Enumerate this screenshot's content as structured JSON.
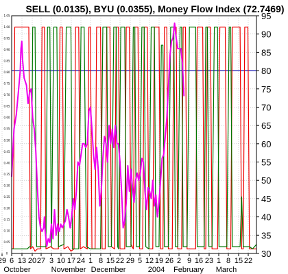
{
  "chart_data": {
    "type": "line",
    "title": "SELL (0.0135), BYU (0.0355), Money Flow Index (72.7469)",
    "left_axis": {
      "ylim": [
        0,
        1.05
      ],
      "ticks": [
        "0",
        "0.05",
        "0.10",
        "0.15",
        "0.20",
        "0.25",
        "0.30",
        "0.35",
        "0.40",
        "0.45",
        "0.50",
        "0.55",
        "0.60",
        "0.65",
        "0.70",
        "0.75",
        "0.80",
        "0.85",
        "0.90",
        "0.95",
        "1.00",
        "1.05"
      ]
    },
    "right_axis": {
      "ylim": [
        30,
        95
      ],
      "ticks": [
        "30",
        "35",
        "40",
        "45",
        "50",
        "55",
        "60",
        "65",
        "70",
        "75",
        "80",
        "85",
        "90",
        "95"
      ]
    },
    "x_ticks": [
      "29",
      "6",
      "13",
      "20",
      "27",
      "3",
      "10",
      "17",
      "24",
      "1",
      "8",
      "15",
      "22",
      "29",
      "5",
      "12",
      "19",
      "26",
      "2",
      "9",
      "16",
      "23",
      "1",
      "8",
      "15",
      "22"
    ],
    "months": [
      "October",
      "November",
      "December",
      "2004",
      "February",
      "March"
    ],
    "reference_line": {
      "axis": "right",
      "value": 80,
      "color": "#0000aa"
    },
    "grid": true,
    "series": [
      {
        "color": "#ee0000",
        "points": [
          [
            0,
            0.02
          ],
          [
            2,
            0.02
          ],
          [
            4,
            1.0
          ],
          [
            22,
            1.0
          ],
          [
            24,
            0.02
          ],
          [
            27,
            0.03
          ],
          [
            30,
            0.01
          ],
          [
            33,
            0.02
          ],
          [
            37,
            0.02
          ],
          [
            39,
            1.0
          ],
          [
            42,
            1.0
          ],
          [
            44,
            0.02
          ],
          [
            50,
            0.03
          ],
          [
            54,
            0.02
          ],
          [
            60,
            0.02
          ],
          [
            62,
            1.0
          ],
          [
            65,
            1.0
          ],
          [
            67,
            0.02
          ],
          [
            72,
            0.03
          ],
          [
            76,
            0.01
          ],
          [
            80,
            0.02
          ],
          [
            82,
            1.0
          ],
          [
            86,
            1.0
          ],
          [
            88,
            0.02
          ],
          [
            92,
            0.03
          ],
          [
            97,
            0.02
          ],
          [
            99,
            1.0
          ],
          [
            101,
            1.0
          ],
          [
            103,
            0.02
          ],
          [
            107,
            0.02
          ],
          [
            109,
            1.0
          ],
          [
            114,
            1.0
          ],
          [
            116,
            0.02
          ],
          [
            120,
            0.02
          ],
          [
            122,
            1.0
          ],
          [
            126,
            1.0
          ],
          [
            128,
            0.03
          ],
          [
            132,
            0.02
          ],
          [
            134,
            1.0
          ],
          [
            137,
            1.0
          ],
          [
            139,
            0.02
          ],
          [
            145,
            0.02
          ],
          [
            147,
            1.0
          ],
          [
            151,
            1.0
          ],
          [
            153,
            0.04
          ],
          [
            156,
            0.02
          ],
          [
            158,
            1.0
          ],
          [
            162,
            1.0
          ],
          [
            164,
            0.02
          ],
          [
            168,
            0.02
          ],
          [
            170,
            1.0
          ],
          [
            174,
            1.0
          ],
          [
            176,
            0.02
          ],
          [
            181,
            0.02
          ],
          [
            183,
            1.0
          ],
          [
            189,
            1.0
          ],
          [
            191,
            0.02
          ],
          [
            194,
            0.02
          ],
          [
            196,
            1.0
          ],
          [
            199,
            1.0
          ],
          [
            201,
            0.02
          ],
          [
            206,
            0.02
          ],
          [
            208,
            1.0
          ],
          [
            211,
            1.0
          ],
          [
            213,
            0.02
          ],
          [
            218,
            0.02
          ],
          [
            220,
            1.0
          ],
          [
            223,
            1.0
          ],
          [
            225,
            0.02
          ],
          [
            236,
            0.02
          ],
          [
            238,
            1.0
          ],
          [
            245,
            1.0
          ],
          [
            247,
            0.02
          ],
          [
            249,
            0.02
          ],
          [
            251,
            1.0
          ],
          [
            255,
            1.0
          ],
          [
            257,
            0.02
          ],
          [
            264,
            0.02
          ],
          [
            267,
            1.0
          ],
          [
            274,
            1.0
          ],
          [
            276,
            0.02
          ],
          [
            281,
            0.02
          ],
          [
            283,
            1.0
          ],
          [
            293,
            1.0
          ],
          [
            295,
            0.02
          ],
          [
            297,
            0.02
          ],
          [
            299,
            1.0
          ],
          [
            303,
            1.0
          ],
          [
            305,
            0.02
          ],
          [
            314,
            0.02
          ]
        ]
      },
      {
        "color": "#007700",
        "points": [
          [
            0,
            0.02
          ],
          [
            20,
            0.02
          ],
          [
            23,
            0.03
          ],
          [
            25,
            0.03
          ],
          [
            27,
            1.0
          ],
          [
            30,
            1.0
          ],
          [
            32,
            0.03
          ],
          [
            37,
            0.03
          ],
          [
            44,
            0.03
          ],
          [
            46,
            1.0
          ],
          [
            49,
            1.0
          ],
          [
            51,
            0.03
          ],
          [
            54,
            1.0
          ],
          [
            58,
            1.0
          ],
          [
            60,
            0.03
          ],
          [
            67,
            0.04
          ],
          [
            70,
            1.0
          ],
          [
            76,
            1.0
          ],
          [
            78,
            0.02
          ],
          [
            86,
            0.02
          ],
          [
            89,
            1.0
          ],
          [
            93,
            1.0
          ],
          [
            96,
            0.03
          ],
          [
            101,
            0.02
          ],
          [
            106,
            0.02
          ],
          [
            114,
            0.02
          ],
          [
            117,
            1.0
          ],
          [
            122,
            1.0
          ],
          [
            124,
            0.03
          ],
          [
            128,
            0.03
          ],
          [
            131,
            1.0
          ],
          [
            134,
            1.0
          ],
          [
            136,
            0.03
          ],
          [
            137,
            0.02
          ],
          [
            140,
            1.0
          ],
          [
            145,
            1.0
          ],
          [
            147,
            0.03
          ],
          [
            153,
            0.03
          ],
          [
            156,
            1.0
          ],
          [
            158,
            1.0
          ],
          [
            160,
            0.03
          ],
          [
            164,
            0.03
          ],
          [
            167,
            1.0
          ],
          [
            170,
            1.0
          ],
          [
            172,
            0.03
          ],
          [
            176,
            0.02
          ],
          [
            179,
            1.0
          ],
          [
            183,
            1.0
          ],
          [
            185,
            0.03
          ],
          [
            189,
            0.03
          ],
          [
            192,
            0.92
          ],
          [
            194,
            0.92
          ],
          [
            196,
            0.03
          ],
          [
            201,
            0.03
          ],
          [
            204,
            1.0
          ],
          [
            208,
            1.0
          ],
          [
            210,
            0.03
          ],
          [
            213,
            0.03
          ],
          [
            216,
            1.0
          ],
          [
            218,
            1.0
          ],
          [
            220,
            0.03
          ],
          [
            225,
            0.03
          ],
          [
            228,
            1.0
          ],
          [
            236,
            1.0
          ],
          [
            238,
            0.03
          ],
          [
            247,
            0.03
          ],
          [
            249,
            1.0
          ],
          [
            251,
            1.0
          ],
          [
            253,
            0.03
          ],
          [
            257,
            0.03
          ],
          [
            260,
            1.0
          ],
          [
            264,
            1.0
          ],
          [
            266,
            0.03
          ],
          [
            276,
            0.03
          ],
          [
            279,
            1.0
          ],
          [
            281,
            1.0
          ],
          [
            283,
            0.03
          ],
          [
            293,
            0.03
          ],
          [
            295,
            0.25
          ],
          [
            297,
            0.03
          ],
          [
            305,
            0.03
          ],
          [
            309,
            0.02
          ],
          [
            314,
            0.04
          ]
        ]
      },
      {
        "axis": "right",
        "color": "#ee00ee",
        "points": [
          [
            0,
            51
          ],
          [
            3,
            64
          ],
          [
            6,
            68
          ],
          [
            9,
            75
          ],
          [
            11,
            80
          ],
          [
            12,
            86
          ],
          [
            13,
            88
          ],
          [
            14,
            83
          ],
          [
            16,
            78
          ],
          [
            19,
            76
          ],
          [
            21,
            71
          ],
          [
            23,
            74
          ],
          [
            25,
            75
          ],
          [
            27,
            67
          ],
          [
            29,
            64
          ],
          [
            31,
            58
          ],
          [
            33,
            48
          ],
          [
            35,
            40
          ],
          [
            37,
            37
          ],
          [
            39,
            36
          ],
          [
            41,
            37
          ],
          [
            42,
            40
          ],
          [
            43,
            36
          ],
          [
            45,
            32
          ],
          [
            47,
            34
          ],
          [
            49,
            33
          ],
          [
            51,
            38
          ],
          [
            53,
            34
          ],
          [
            55,
            42
          ],
          [
            57,
            35
          ],
          [
            59,
            38
          ],
          [
            61,
            36
          ],
          [
            63,
            38
          ],
          [
            65,
            37
          ],
          [
            67,
            38
          ],
          [
            69,
            39
          ],
          [
            71,
            42
          ],
          [
            73,
            40
          ],
          [
            75,
            37
          ],
          [
            77,
            40
          ],
          [
            79,
            45
          ],
          [
            81,
            42
          ],
          [
            83,
            47
          ],
          [
            85,
            55
          ],
          [
            87,
            54
          ],
          [
            89,
            57
          ],
          [
            91,
            60
          ],
          [
            93,
            60
          ],
          [
            95,
            59
          ],
          [
            97,
            60
          ],
          [
            99,
            69
          ],
          [
            101,
            70
          ],
          [
            103,
            64
          ],
          [
            105,
            57
          ],
          [
            107,
            53
          ],
          [
            109,
            59
          ],
          [
            111,
            53
          ],
          [
            113,
            43
          ],
          [
            115,
            47
          ],
          [
            117,
            56
          ],
          [
            119,
            62
          ],
          [
            121,
            60
          ],
          [
            123,
            55
          ],
          [
            125,
            65
          ],
          [
            127,
            60
          ],
          [
            129,
            64
          ],
          [
            131,
            59
          ],
          [
            133,
            65
          ],
          [
            135,
            60
          ],
          [
            137,
            60
          ],
          [
            139,
            55
          ],
          [
            141,
            47
          ],
          [
            143,
            37
          ],
          [
            145,
            39
          ],
          [
            147,
            44
          ],
          [
            149,
            54
          ],
          [
            151,
            47
          ],
          [
            153,
            53
          ],
          [
            155,
            48
          ],
          [
            157,
            44
          ],
          [
            159,
            50
          ],
          [
            161,
            52
          ],
          [
            163,
            50
          ],
          [
            165,
            52
          ],
          [
            167,
            56
          ],
          [
            169,
            55
          ],
          [
            171,
            47
          ],
          [
            173,
            42
          ],
          [
            175,
            48
          ],
          [
            177,
            47
          ],
          [
            179,
            45
          ],
          [
            181,
            50
          ],
          [
            183,
            43
          ],
          [
            185,
            46
          ],
          [
            187,
            40
          ],
          [
            189,
            44
          ],
          [
            191,
            50
          ],
          [
            193,
            56
          ],
          [
            195,
            57
          ],
          [
            197,
            62
          ],
          [
            199,
            67
          ],
          [
            201,
            75
          ],
          [
            203,
            84
          ],
          [
            205,
            88
          ],
          [
            207,
            89
          ],
          [
            209,
            93
          ],
          [
            211,
            89
          ],
          [
            213,
            86
          ],
          [
            215,
            86
          ],
          [
            217,
            86
          ],
          [
            219,
            82
          ],
          [
            221,
            73
          ]
        ]
      }
    ]
  }
}
